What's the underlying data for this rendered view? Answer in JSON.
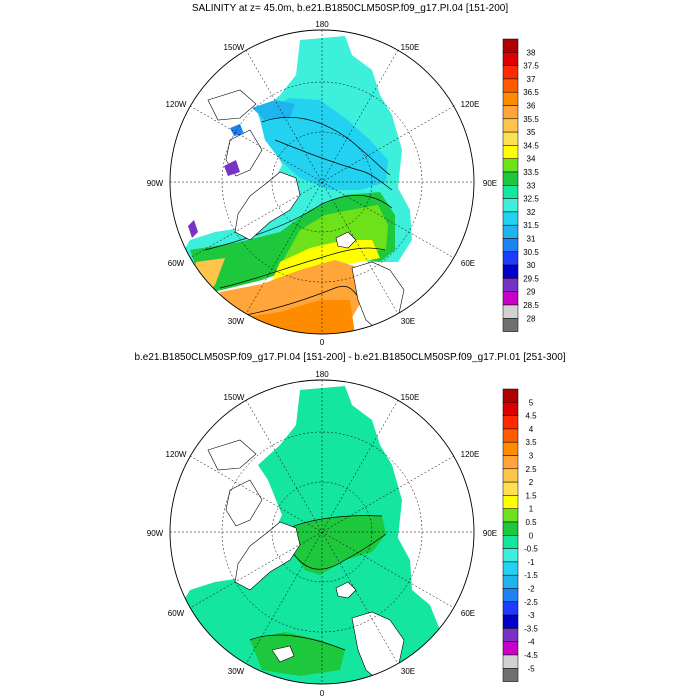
{
  "panel_top": {
    "title": "SALINITY at z=  45.0m, b.e21.B1850CLM50SP.f09_g17.PI.04 [151-200]",
    "lon_labels": [
      "180",
      "150E",
      "120E",
      "90E",
      "60E",
      "30E",
      "0",
      "30W",
      "60W",
      "90W",
      "120W",
      "150W"
    ],
    "colorbar_labels": [
      "38",
      "37.5",
      "37",
      "36.5",
      "36",
      "35.5",
      "35",
      "34.5",
      "34",
      "33.5",
      "33",
      "32.5",
      "32",
      "31.5",
      "31",
      "30.5",
      "30",
      "29.5",
      "29",
      "28.5",
      "28"
    ],
    "colorbar_colors": [
      "#b00000",
      "#dc0000",
      "#ff2a00",
      "#ff5a00",
      "#ff8c00",
      "#ffa53a",
      "#ffc44a",
      "#ffe050",
      "#ffff00",
      "#6de21a",
      "#1ec83c",
      "#14e6a0",
      "#3cf0dc",
      "#22d2f0",
      "#1eb4f0",
      "#1e82f0",
      "#1e3cff",
      "#0000c8",
      "#7832c8",
      "#c800c8",
      "#d2d2d2",
      "#707070"
    ]
  },
  "panel_bottom": {
    "title": "b.e21.B1850CLM50SP.f09_g17.PI.04 [151-200] - b.e21.B1850CLM50SP.f09_g17.PI.01 [251-300]",
    "lon_labels": [
      "180",
      "150E",
      "120E",
      "90E",
      "60E",
      "30E",
      "0",
      "30W",
      "60W",
      "90W",
      "120W",
      "150W"
    ],
    "colorbar_labels": [
      "5",
      "4.5",
      "4",
      "3.5",
      "3",
      "2.5",
      "2",
      "1.5",
      "1",
      "0.5",
      "0",
      "-0.5",
      "-1",
      "-1.5",
      "-2",
      "-2.5",
      "-3",
      "-3.5",
      "-4",
      "-4.5",
      "-5"
    ],
    "colorbar_colors": [
      "#b00000",
      "#dc0000",
      "#ff2a00",
      "#ff5a00",
      "#ff8c00",
      "#ffa53a",
      "#ffc44a",
      "#ffe050",
      "#ffff00",
      "#6de21a",
      "#1ec83c",
      "#14e6a0",
      "#3cf0dc",
      "#22d2f0",
      "#1eb4f0",
      "#1e82f0",
      "#1e3cff",
      "#0000c8",
      "#7832c8",
      "#c800c8",
      "#d2d2d2",
      "#707070"
    ]
  }
}
